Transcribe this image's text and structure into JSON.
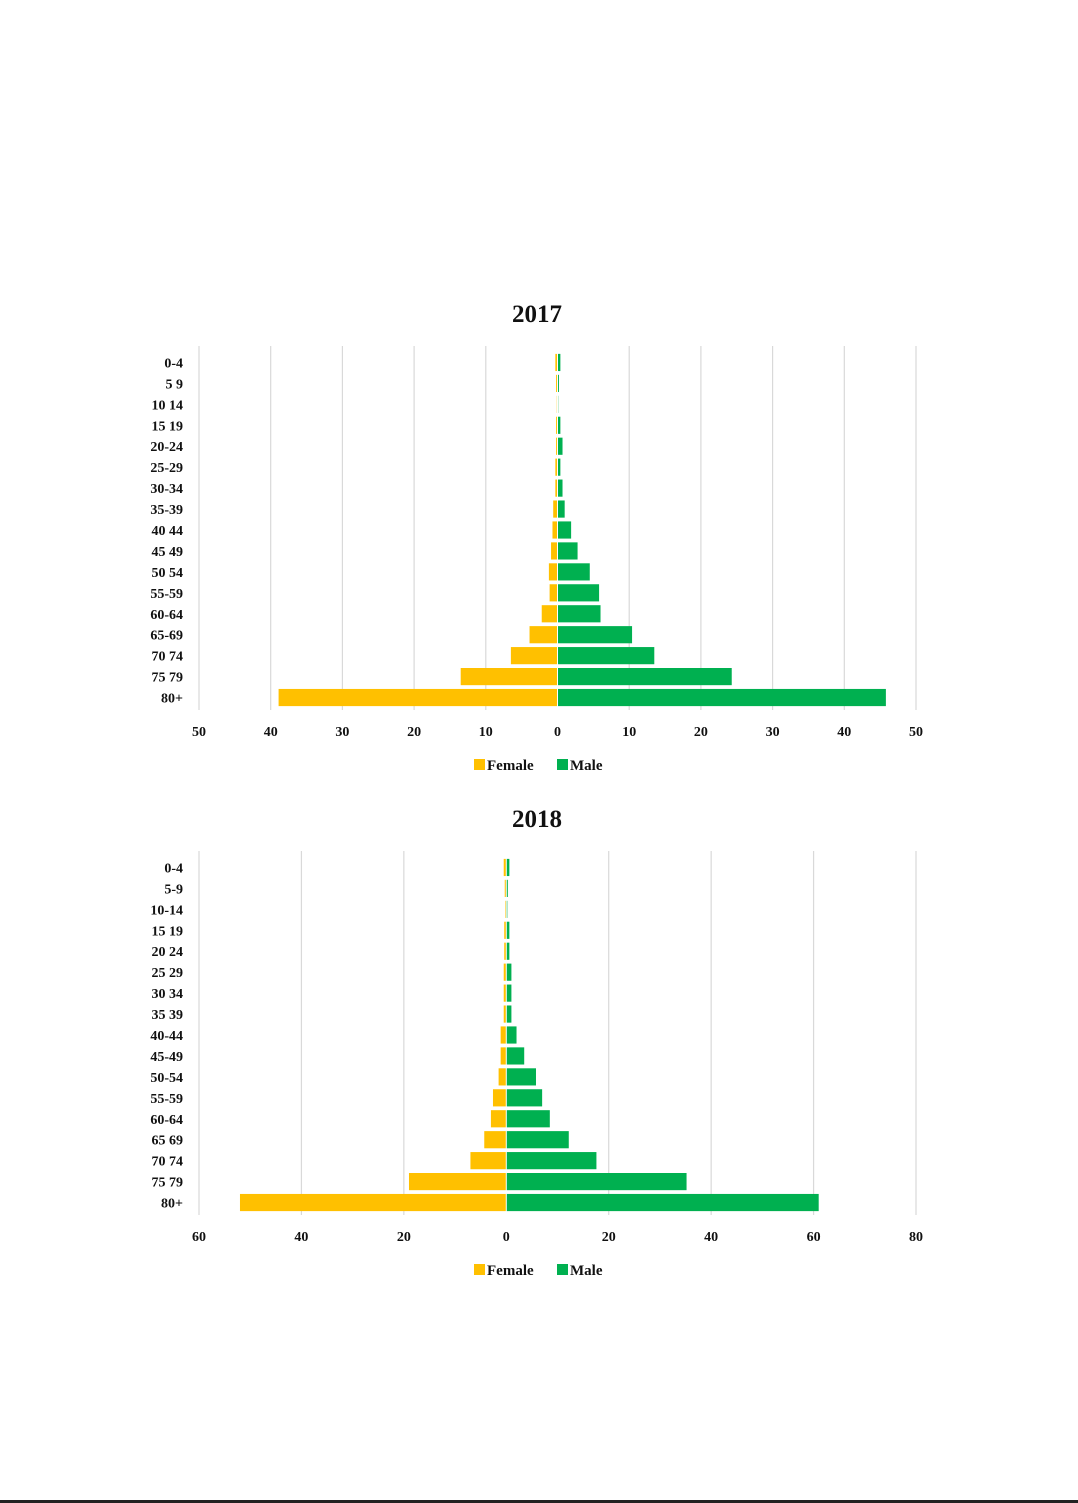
{
  "chart_data": [
    {
      "type": "bar",
      "orientation": "horizontal",
      "layout": "population-pyramid",
      "title": "2017",
      "categories": [
        "0-4",
        "5 9",
        "10 14",
        "15 19",
        "20-24",
        "25-29",
        "30-34",
        "35-39",
        "40 44",
        "45 49",
        "50 54",
        "55-59",
        "60-64",
        "65-69",
        "70 74",
        "75 79",
        "80+"
      ],
      "series": [
        {
          "name": "Female",
          "color": "#FFC000",
          "values": [
            0.3,
            0.2,
            0.1,
            0.2,
            0.2,
            0.3,
            0.3,
            0.6,
            0.7,
            0.9,
            1.2,
            1.1,
            2.2,
            3.9,
            6.5,
            13.5,
            38.9
          ]
        },
        {
          "name": "Male",
          "color": "#00B050",
          "values": [
            0.4,
            0.2,
            0.1,
            0.4,
            0.7,
            0.4,
            0.7,
            1.0,
            1.9,
            2.8,
            4.5,
            5.8,
            6.0,
            10.4,
            13.5,
            24.3,
            45.8
          ]
        }
      ],
      "xlim": [
        -50,
        50
      ],
      "xticks": [
        -50,
        -40,
        -30,
        -20,
        -10,
        0,
        10,
        20,
        30,
        40,
        50
      ],
      "xtick_labels": [
        "50",
        "40",
        "30",
        "20",
        "10",
        "0",
        "10",
        "20",
        "30",
        "40",
        "50"
      ],
      "grid": true,
      "legend": "bottom"
    },
    {
      "type": "bar",
      "orientation": "horizontal",
      "layout": "population-pyramid",
      "title": "2018",
      "categories": [
        "0-4",
        "5-9",
        "10-14",
        "15 19",
        "20 24",
        "25 29",
        "30 34",
        "35 39",
        "40-44",
        "45-49",
        "50-54",
        "55-59",
        "60-64",
        "65 69",
        "70 74",
        "75 79",
        "80+"
      ],
      "series": [
        {
          "name": "Female",
          "color": "#FFC000",
          "values": [
            0.5,
            0.3,
            0.2,
            0.4,
            0.4,
            0.5,
            0.5,
            0.5,
            1.1,
            1.1,
            1.5,
            2.6,
            3.0,
            4.3,
            7.0,
            19.0,
            52.0
          ]
        },
        {
          "name": "Male",
          "color": "#00B050",
          "values": [
            0.6,
            0.3,
            0.2,
            0.6,
            0.6,
            1.0,
            1.0,
            1.0,
            2.0,
            3.5,
            5.8,
            7.0,
            8.5,
            12.2,
            17.6,
            35.2,
            61.0
          ]
        }
      ],
      "xlim": [
        -60,
        80
      ],
      "xticks": [
        -60,
        -40,
        -20,
        0,
        20,
        40,
        60,
        80
      ],
      "xtick_labels": [
        "60",
        "40",
        "20",
        "0",
        "20",
        "40",
        "60",
        "80"
      ],
      "grid": true,
      "legend": "bottom"
    }
  ]
}
